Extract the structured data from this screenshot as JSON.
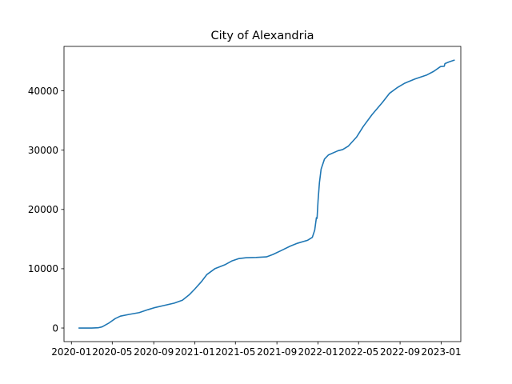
{
  "chart_data": {
    "type": "line",
    "title": "City of Alexandria",
    "xlabel": "",
    "ylabel": "",
    "x_range": [
      "2019-12-10",
      "2023-02-28"
    ],
    "y_range": [
      -2290,
      47500
    ],
    "grid": false,
    "x_ticks": [
      "2020-01",
      "2020-05",
      "2020-09",
      "2021-01",
      "2021-05",
      "2021-09",
      "2022-01",
      "2022-05",
      "2022-09",
      "2023-01"
    ],
    "y_ticks": [
      0,
      10000,
      20000,
      30000,
      40000
    ],
    "series": [
      {
        "color": "#1f77b4",
        "points": [
          [
            "2020-01-22",
            0
          ],
          [
            "2020-03-01",
            0
          ],
          [
            "2020-03-20",
            40
          ],
          [
            "2020-04-01",
            200
          ],
          [
            "2020-04-20",
            800
          ],
          [
            "2020-05-10",
            1600
          ],
          [
            "2020-05-25",
            2000
          ],
          [
            "2020-06-20",
            2300
          ],
          [
            "2020-07-20",
            2600
          ],
          [
            "2020-08-15",
            3100
          ],
          [
            "2020-09-01",
            3400
          ],
          [
            "2020-10-01",
            3800
          ],
          [
            "2020-11-01",
            4200
          ],
          [
            "2020-11-25",
            4700
          ],
          [
            "2020-12-15",
            5600
          ],
          [
            "2021-01-01",
            6600
          ],
          [
            "2021-01-20",
            7800
          ],
          [
            "2021-02-05",
            9000
          ],
          [
            "2021-03-01",
            10000
          ],
          [
            "2021-04-01",
            10700
          ],
          [
            "2021-04-20",
            11300
          ],
          [
            "2021-05-10",
            11700
          ],
          [
            "2021-06-01",
            11850
          ],
          [
            "2021-07-01",
            11900
          ],
          [
            "2021-08-01",
            12000
          ],
          [
            "2021-08-20",
            12400
          ],
          [
            "2021-09-15",
            13100
          ],
          [
            "2021-10-10",
            13800
          ],
          [
            "2021-11-01",
            14300
          ],
          [
            "2021-12-01",
            14800
          ],
          [
            "2021-12-15",
            15300
          ],
          [
            "2021-12-22",
            16500
          ],
          [
            "2021-12-27",
            18600
          ],
          [
            "2021-12-29",
            18500
          ],
          [
            "2022-01-01",
            21500
          ],
          [
            "2022-01-05",
            24500
          ],
          [
            "2022-01-10",
            26800
          ],
          [
            "2022-01-20",
            28500
          ],
          [
            "2022-02-01",
            29200
          ],
          [
            "2022-03-01",
            29900
          ],
          [
            "2022-03-15",
            30100
          ],
          [
            "2022-04-01",
            30700
          ],
          [
            "2022-04-25",
            32200
          ],
          [
            "2022-05-15",
            34000
          ],
          [
            "2022-06-10",
            36000
          ],
          [
            "2022-07-10",
            38000
          ],
          [
            "2022-08-01",
            39600
          ],
          [
            "2022-08-25",
            40600
          ],
          [
            "2022-09-15",
            41300
          ],
          [
            "2022-10-15",
            42000
          ],
          [
            "2022-11-20",
            42700
          ],
          [
            "2022-12-10",
            43300
          ],
          [
            "2022-12-30",
            44100
          ],
          [
            "2023-01-10",
            44150
          ],
          [
            "2023-01-12",
            44600
          ],
          [
            "2023-01-25",
            44900
          ],
          [
            "2023-02-10",
            45200
          ]
        ]
      }
    ]
  }
}
